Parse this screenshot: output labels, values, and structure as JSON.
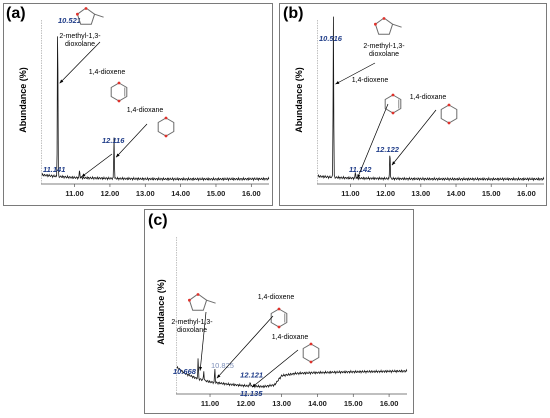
{
  "panel_letters": [
    "(a)",
    "(b)",
    "(c)"
  ],
  "chart_data": [
    {
      "type": "line",
      "panel": "(a)",
      "ylabel": "Abundance (%)",
      "xlabel": "",
      "xlim": [
        10.05,
        16.5
      ],
      "ylim": [
        0,
        100
      ],
      "xticks": [
        11.0,
        12.0,
        13.0,
        14.0,
        15.0,
        16.0
      ],
      "xtick_labels": [
        "11.00",
        "12.00",
        "13.00",
        "14.00",
        "15.00",
        "16.00"
      ],
      "baseline": [
        [
          10.05,
          4.5
        ],
        [
          10.4,
          3.6
        ],
        [
          11.0,
          2.7
        ],
        [
          12.0,
          2.2
        ],
        [
          13.0,
          1.9
        ],
        [
          14.0,
          1.8
        ],
        [
          15.0,
          1.8
        ],
        [
          16.5,
          1.9
        ]
      ],
      "solvent_front": 10.07,
      "peaks": [
        {
          "x": 10.521,
          "height": 100,
          "label": "10.521"
        },
        {
          "x": 11.141,
          "height": 5,
          "label": "11.141"
        },
        {
          "x": 12.116,
          "height": 26,
          "label": "12.116"
        }
      ],
      "annotations": [
        {
          "text": [
            "2-methyl-1,3-",
            "dioxolane"
          ],
          "structure": "dioxolane-ring",
          "points_to": 10.521
        },
        {
          "text": [
            "1,4-dioxene"
          ],
          "structure": "dioxene-ring",
          "points_to": 11.141
        },
        {
          "text": [
            "1,4-dioxane"
          ],
          "structure": "dioxane-ring",
          "points_to": 12.116
        }
      ]
    },
    {
      "type": "line",
      "panel": "(b)",
      "ylabel": "Abundance (%)",
      "xlabel": "",
      "xlim": [
        10.05,
        16.5
      ],
      "ylim": [
        0,
        100
      ],
      "xticks": [
        11.0,
        12.0,
        13.0,
        14.0,
        15.0,
        16.0
      ],
      "xtick_labels": [
        "11.00",
        "12.00",
        "13.00",
        "14.00",
        "15.00",
        "16.00"
      ],
      "baseline": [
        [
          10.05,
          3.6
        ],
        [
          10.4,
          3.0
        ],
        [
          11.0,
          2.4
        ],
        [
          12.0,
          2.1
        ],
        [
          13.0,
          1.9
        ],
        [
          14.0,
          1.8
        ],
        [
          15.0,
          1.8
        ],
        [
          16.5,
          1.8
        ]
      ],
      "solvent_front": 10.07,
      "peaks": [
        {
          "x": 10.516,
          "height": 100,
          "label": "10.516"
        },
        {
          "x": 11.142,
          "height": 4,
          "label": "11.142"
        },
        {
          "x": 12.122,
          "height": 18,
          "label": "12.122"
        }
      ],
      "annotations": [
        {
          "text": [
            "2-methyl-1,3-",
            "dioxolane"
          ],
          "structure": "dioxolane-ring",
          "points_to": 10.516
        },
        {
          "text": [
            "1,4-dioxene"
          ],
          "structure": "dioxene-ring",
          "points_to": 11.142
        },
        {
          "text": [
            "1,4-dioxane"
          ],
          "structure": "dioxane-ring",
          "points_to": 12.122
        }
      ]
    },
    {
      "type": "line",
      "panel": "(c)",
      "ylabel": "Abundance (%)",
      "xlabel": "",
      "xlim": [
        10.05,
        16.5
      ],
      "ylim": [
        0,
        100
      ],
      "xticks": [
        11.0,
        12.0,
        13.0,
        14.0,
        15.0,
        16.0
      ],
      "xtick_labels": [
        "11.00",
        "12.00",
        "13.00",
        "14.00",
        "15.00",
        "16.00"
      ],
      "baseline": [
        [
          10.07,
          16.0
        ],
        [
          10.3,
          12.0
        ],
        [
          10.6,
          9.0
        ],
        [
          11.0,
          6.5
        ],
        [
          11.5,
          5.0
        ],
        [
          12.0,
          4.0
        ],
        [
          12.5,
          3.5
        ],
        [
          12.8,
          4.5
        ],
        [
          13.0,
          10.5
        ],
        [
          13.4,
          12.0
        ],
        [
          14.0,
          12.5
        ],
        [
          15.0,
          13.0
        ],
        [
          16.5,
          13.5
        ]
      ],
      "solvent_front": 10.07,
      "peaks": [
        {
          "x": 10.668,
          "height": 13,
          "label": "10.668"
        },
        {
          "x": 10.825,
          "height": 6,
          "label": "10.825"
        },
        {
          "x": 11.135,
          "height": 9,
          "label": "11.135"
        },
        {
          "x": 12.121,
          "height": 3,
          "label": "12.121"
        }
      ],
      "annotations": [
        {
          "text": [
            "2-methyl-1,3-",
            "dioxolane"
          ],
          "structure": "dioxolane-ring",
          "points_to": 10.668
        },
        {
          "text": [
            "1,4-dioxene"
          ],
          "structure": "dioxene-ring",
          "points_to": 11.135
        },
        {
          "text": [
            "1,4-dioxane"
          ],
          "structure": "dioxane-ring",
          "points_to": 12.121
        }
      ]
    }
  ]
}
